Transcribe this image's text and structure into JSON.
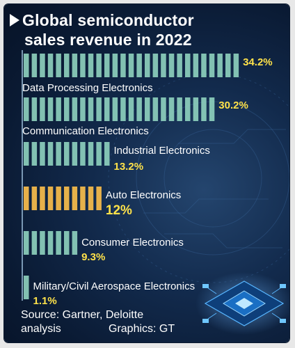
{
  "title": {
    "line1": "Global semiconductor",
    "line2": "sales revenue in 2022"
  },
  "source": {
    "line1": "Source: Gartner, Deloitte",
    "line2": "analysis",
    "graphics": "Graphics: GT"
  },
  "colors": {
    "background": "#0f2444",
    "bar_default": "#8fd3bf",
    "bar_highlight": "#f2b84b",
    "value_label": "#ffe24a",
    "text": "#ffffff"
  },
  "chart_data": {
    "type": "bar",
    "orientation": "horizontal",
    "title": "Global semiconductor sales revenue in 2022",
    "unit": "%",
    "categories": [
      "Data Processing Electronics",
      "Communication Electronics",
      "Industrial Electronics",
      "Auto Electronics",
      "Consumer Electronics",
      "Military/Civil Aerospace Electronics"
    ],
    "values": [
      34.2,
      30.2,
      13.2,
      12,
      9.3,
      1.1
    ],
    "value_labels": [
      "34.2%",
      "30.2%",
      "13.2%",
      "12%",
      "9.3%",
      "1.1%"
    ],
    "highlight": "Auto Electronics"
  }
}
